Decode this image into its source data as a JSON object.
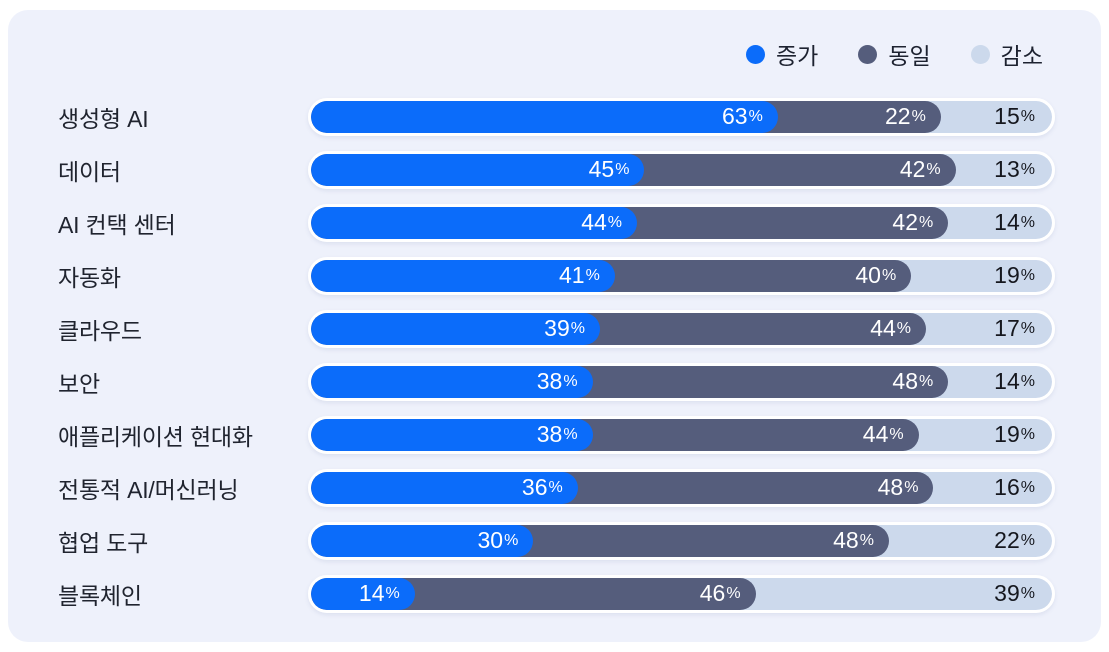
{
  "legend": [
    {
      "label": "증가",
      "color": "#0b6cfa"
    },
    {
      "label": "동일",
      "color": "#555d7c"
    },
    {
      "label": "감소",
      "color": "#ccd9ec"
    }
  ],
  "chart_data": {
    "type": "bar",
    "orientation": "horizontal",
    "stacked": true,
    "unit": "%",
    "value_range": [
      0,
      100
    ],
    "legend_position": "top-right",
    "categories": [
      "생성형 AI",
      "데이터",
      "AI 컨택 센터",
      "자동화",
      "클라우드",
      "보안",
      "애플리케이션 현대화",
      "전통적 AI/머신러닝",
      "협업 도구",
      "블록체인"
    ],
    "series": [
      {
        "name": "증가",
        "color": "#0b6cfa",
        "text_color": "#ffffff",
        "values": [
          63,
          45,
          44,
          41,
          39,
          38,
          38,
          36,
          30,
          14
        ]
      },
      {
        "name": "동일",
        "color": "#555d7c",
        "text_color": "#ffffff",
        "values": [
          22,
          42,
          42,
          40,
          44,
          48,
          44,
          48,
          48,
          46
        ]
      },
      {
        "name": "감소",
        "color": "#ccd9ec",
        "text_color": "#15171e",
        "values": [
          15,
          13,
          14,
          19,
          17,
          14,
          19,
          16,
          22,
          39
        ]
      }
    ],
    "card_background": "#eef1fb",
    "page_background": "#ffffff",
    "bar_border_color": "#ffffff"
  }
}
